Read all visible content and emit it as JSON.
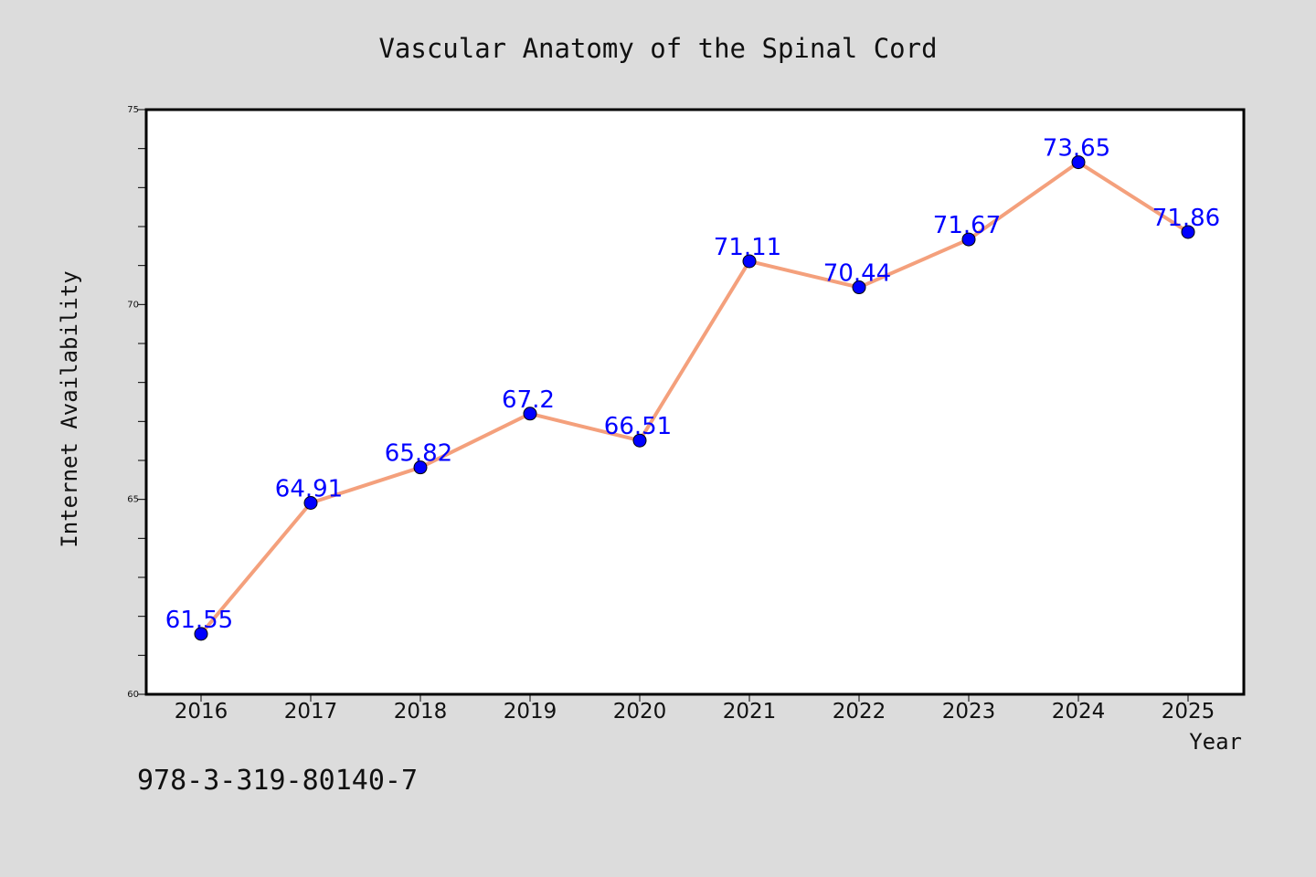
{
  "chart_data": {
    "type": "line",
    "title": "Vascular Anatomy of the Spinal Cord",
    "xlabel": "Year",
    "ylabel": "Internet Availability",
    "x": [
      "2016",
      "2017",
      "2018",
      "2019",
      "2020",
      "2021",
      "2022",
      "2023",
      "2024",
      "2025"
    ],
    "series": [
      {
        "values": [
          61.55,
          64.91,
          65.82,
          67.2,
          66.51,
          71.11,
          70.44,
          71.67,
          73.65,
          71.86
        ],
        "labels": [
          "61.55",
          "64.91",
          "65.82",
          "67.2",
          "66.51",
          "71.11",
          "70.44",
          "71.67",
          "73.65",
          "71.86"
        ],
        "line_color": "#f4a07c",
        "marker_color": "#0000ff"
      }
    ],
    "ylim": [
      60,
      75
    ],
    "y_ticks": [
      "60",
      "65",
      "70",
      "75"
    ],
    "y_tick_values": [
      60,
      65,
      70,
      75
    ],
    "grid": false,
    "annotation": "978-3-319-80140-7",
    "colors": {
      "background": "#dcdcdc",
      "plot_background": "#ffffff",
      "label_color": "#0000ff"
    }
  }
}
